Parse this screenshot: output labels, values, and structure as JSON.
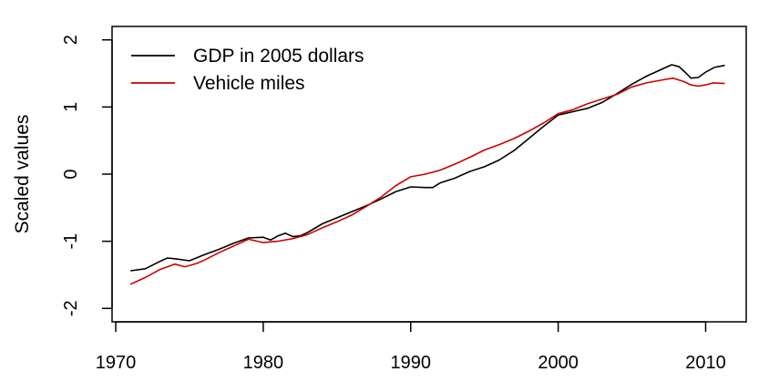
{
  "chart_data": {
    "type": "line",
    "title": "",
    "xlabel": "",
    "ylabel": "Scaled values",
    "xlim": [
      1969.75,
      2012.75
    ],
    "ylim": [
      -2.2,
      2.2
    ],
    "x_ticks": [
      1970,
      1980,
      1990,
      2000,
      2010
    ],
    "y_ticks": [
      -2,
      -1,
      0,
      1,
      2
    ],
    "legend_position": "top-left",
    "grid": false,
    "series": [
      {
        "name": "GDP in 2005 dollars",
        "color": "#000000",
        "points": [
          [
            1971.0,
            -1.44
          ],
          [
            1972.0,
            -1.41
          ],
          [
            1973.0,
            -1.3
          ],
          [
            1973.5,
            -1.25
          ],
          [
            1974.0,
            -1.26
          ],
          [
            1975.0,
            -1.29
          ],
          [
            1976.0,
            -1.2
          ],
          [
            1977.0,
            -1.12
          ],
          [
            1978.0,
            -1.03
          ],
          [
            1979.0,
            -0.95
          ],
          [
            1980.0,
            -0.94
          ],
          [
            1980.5,
            -0.98
          ],
          [
            1981.0,
            -0.92
          ],
          [
            1981.5,
            -0.88
          ],
          [
            1982.0,
            -0.93
          ],
          [
            1982.5,
            -0.92
          ],
          [
            1983.0,
            -0.87
          ],
          [
            1984.0,
            -0.74
          ],
          [
            1985.0,
            -0.65
          ],
          [
            1986.0,
            -0.56
          ],
          [
            1987.0,
            -0.47
          ],
          [
            1988.0,
            -0.37
          ],
          [
            1989.0,
            -0.26
          ],
          [
            1990.0,
            -0.19
          ],
          [
            1991.0,
            -0.2
          ],
          [
            1991.5,
            -0.2
          ],
          [
            1992.0,
            -0.13
          ],
          [
            1993.0,
            -0.06
          ],
          [
            1994.0,
            0.04
          ],
          [
            1995.0,
            0.11
          ],
          [
            1996.0,
            0.21
          ],
          [
            1997.0,
            0.35
          ],
          [
            1998.0,
            0.53
          ],
          [
            1999.0,
            0.71
          ],
          [
            2000.0,
            0.88
          ],
          [
            2001.0,
            0.93
          ],
          [
            2002.0,
            0.98
          ],
          [
            2003.0,
            1.07
          ],
          [
            2004.0,
            1.2
          ],
          [
            2005.0,
            1.34
          ],
          [
            2006.0,
            1.46
          ],
          [
            2007.0,
            1.56
          ],
          [
            2007.7,
            1.63
          ],
          [
            2008.2,
            1.6
          ],
          [
            2008.6,
            1.52
          ],
          [
            2009.0,
            1.43
          ],
          [
            2009.5,
            1.44
          ],
          [
            2010.0,
            1.52
          ],
          [
            2010.6,
            1.59
          ],
          [
            2011.3,
            1.62
          ]
        ]
      },
      {
        "name": "Vehicle miles",
        "color": "#cc0000",
        "points": [
          [
            1971.0,
            -1.64
          ],
          [
            1972.0,
            -1.54
          ],
          [
            1973.0,
            -1.42
          ],
          [
            1974.0,
            -1.34
          ],
          [
            1974.7,
            -1.38
          ],
          [
            1975.5,
            -1.33
          ],
          [
            1976.0,
            -1.28
          ],
          [
            1977.0,
            -1.17
          ],
          [
            1978.0,
            -1.07
          ],
          [
            1979.0,
            -0.97
          ],
          [
            1980.0,
            -1.02
          ],
          [
            1981.0,
            -1.0
          ],
          [
            1982.0,
            -0.96
          ],
          [
            1983.0,
            -0.9
          ],
          [
            1984.0,
            -0.8
          ],
          [
            1985.0,
            -0.71
          ],
          [
            1986.0,
            -0.61
          ],
          [
            1987.0,
            -0.48
          ],
          [
            1988.0,
            -0.34
          ],
          [
            1989.0,
            -0.17
          ],
          [
            1990.0,
            -0.04
          ],
          [
            1991.0,
            0.0
          ],
          [
            1992.0,
            0.06
          ],
          [
            1993.0,
            0.15
          ],
          [
            1994.0,
            0.25
          ],
          [
            1995.0,
            0.36
          ],
          [
            1996.0,
            0.44
          ],
          [
            1997.0,
            0.53
          ],
          [
            1998.0,
            0.64
          ],
          [
            1999.0,
            0.76
          ],
          [
            2000.0,
            0.9
          ],
          [
            2001.0,
            0.96
          ],
          [
            2002.0,
            1.05
          ],
          [
            2003.0,
            1.12
          ],
          [
            2004.0,
            1.19
          ],
          [
            2005.0,
            1.3
          ],
          [
            2006.0,
            1.36
          ],
          [
            2007.0,
            1.4
          ],
          [
            2007.8,
            1.43
          ],
          [
            2008.5,
            1.38
          ],
          [
            2009.0,
            1.33
          ],
          [
            2009.5,
            1.31
          ],
          [
            2010.0,
            1.33
          ],
          [
            2010.5,
            1.36
          ],
          [
            2011.3,
            1.35
          ]
        ]
      }
    ]
  }
}
